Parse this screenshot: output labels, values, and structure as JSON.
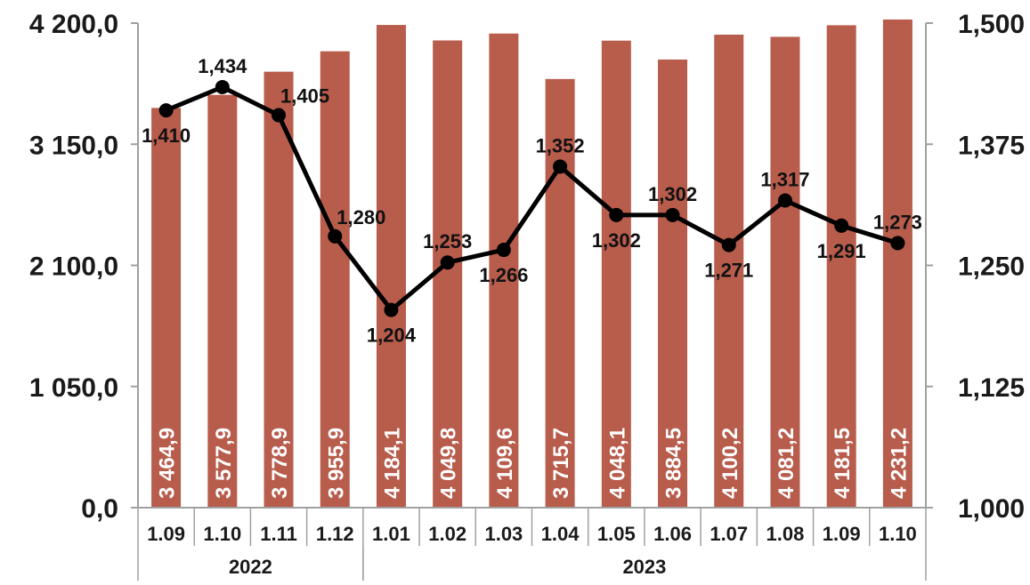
{
  "chart_data": {
    "type": "bar+line",
    "categories": [
      "1.09",
      "1.10",
      "1.11",
      "1.12",
      "1.01",
      "1.02",
      "1.03",
      "1.04",
      "1.05",
      "1.06",
      "1.07",
      "1.08",
      "1.09",
      "1.10"
    ],
    "year_groups": [
      {
        "label": "2022",
        "from": 0,
        "to": 3
      },
      {
        "label": "2023",
        "from": 4,
        "to": 13
      }
    ],
    "bar_series": {
      "color": "#b85c4c",
      "values": [
        3464.9,
        3577.9,
        3778.9,
        3955.9,
        4184.1,
        4049.8,
        4109.6,
        3715.7,
        4048.1,
        3884.5,
        4100.2,
        4081.2,
        4181.5,
        4231.2
      ],
      "labels": [
        "3 464,9",
        "3 577,9",
        "3 778,9",
        "3 955,9",
        "4 184,1",
        "4 049,8",
        "4 109,6",
        "3 715,7",
        "4 048,1",
        "3 884,5",
        "4 100,2",
        "4 081,2",
        "4 181,5",
        "4 231,2"
      ]
    },
    "line_series": {
      "color": "#000000",
      "values": [
        1.41,
        1.434,
        1.405,
        1.28,
        1.204,
        1.253,
        1.266,
        1.352,
        1.302,
        1.302,
        1.271,
        1.317,
        1.291,
        1.273
      ],
      "labels": [
        "1,410",
        "1,434",
        "1,405",
        "1,280",
        "1,204",
        "1,253",
        "1,266",
        "1,352",
        "1,302",
        "1,302",
        "1,271",
        "1,317",
        "1,291",
        "1,273"
      ],
      "label_positions": [
        "below",
        "above",
        "above-right",
        "above-right",
        "below",
        "above",
        "below",
        "above",
        "below",
        "above",
        "below",
        "above",
        "below",
        "above"
      ]
    },
    "y_left": {
      "min": 0,
      "max": 4200,
      "ticks": [
        "0,0",
        "1 050,0",
        "2 100,0",
        "3 150,0",
        "4 200,0"
      ]
    },
    "y_right": {
      "min": 1.0,
      "max": 1.5,
      "ticks": [
        "1,000",
        "1,125",
        "1,250",
        "1,375",
        "1,500"
      ]
    },
    "grid": false,
    "legend": "none"
  }
}
